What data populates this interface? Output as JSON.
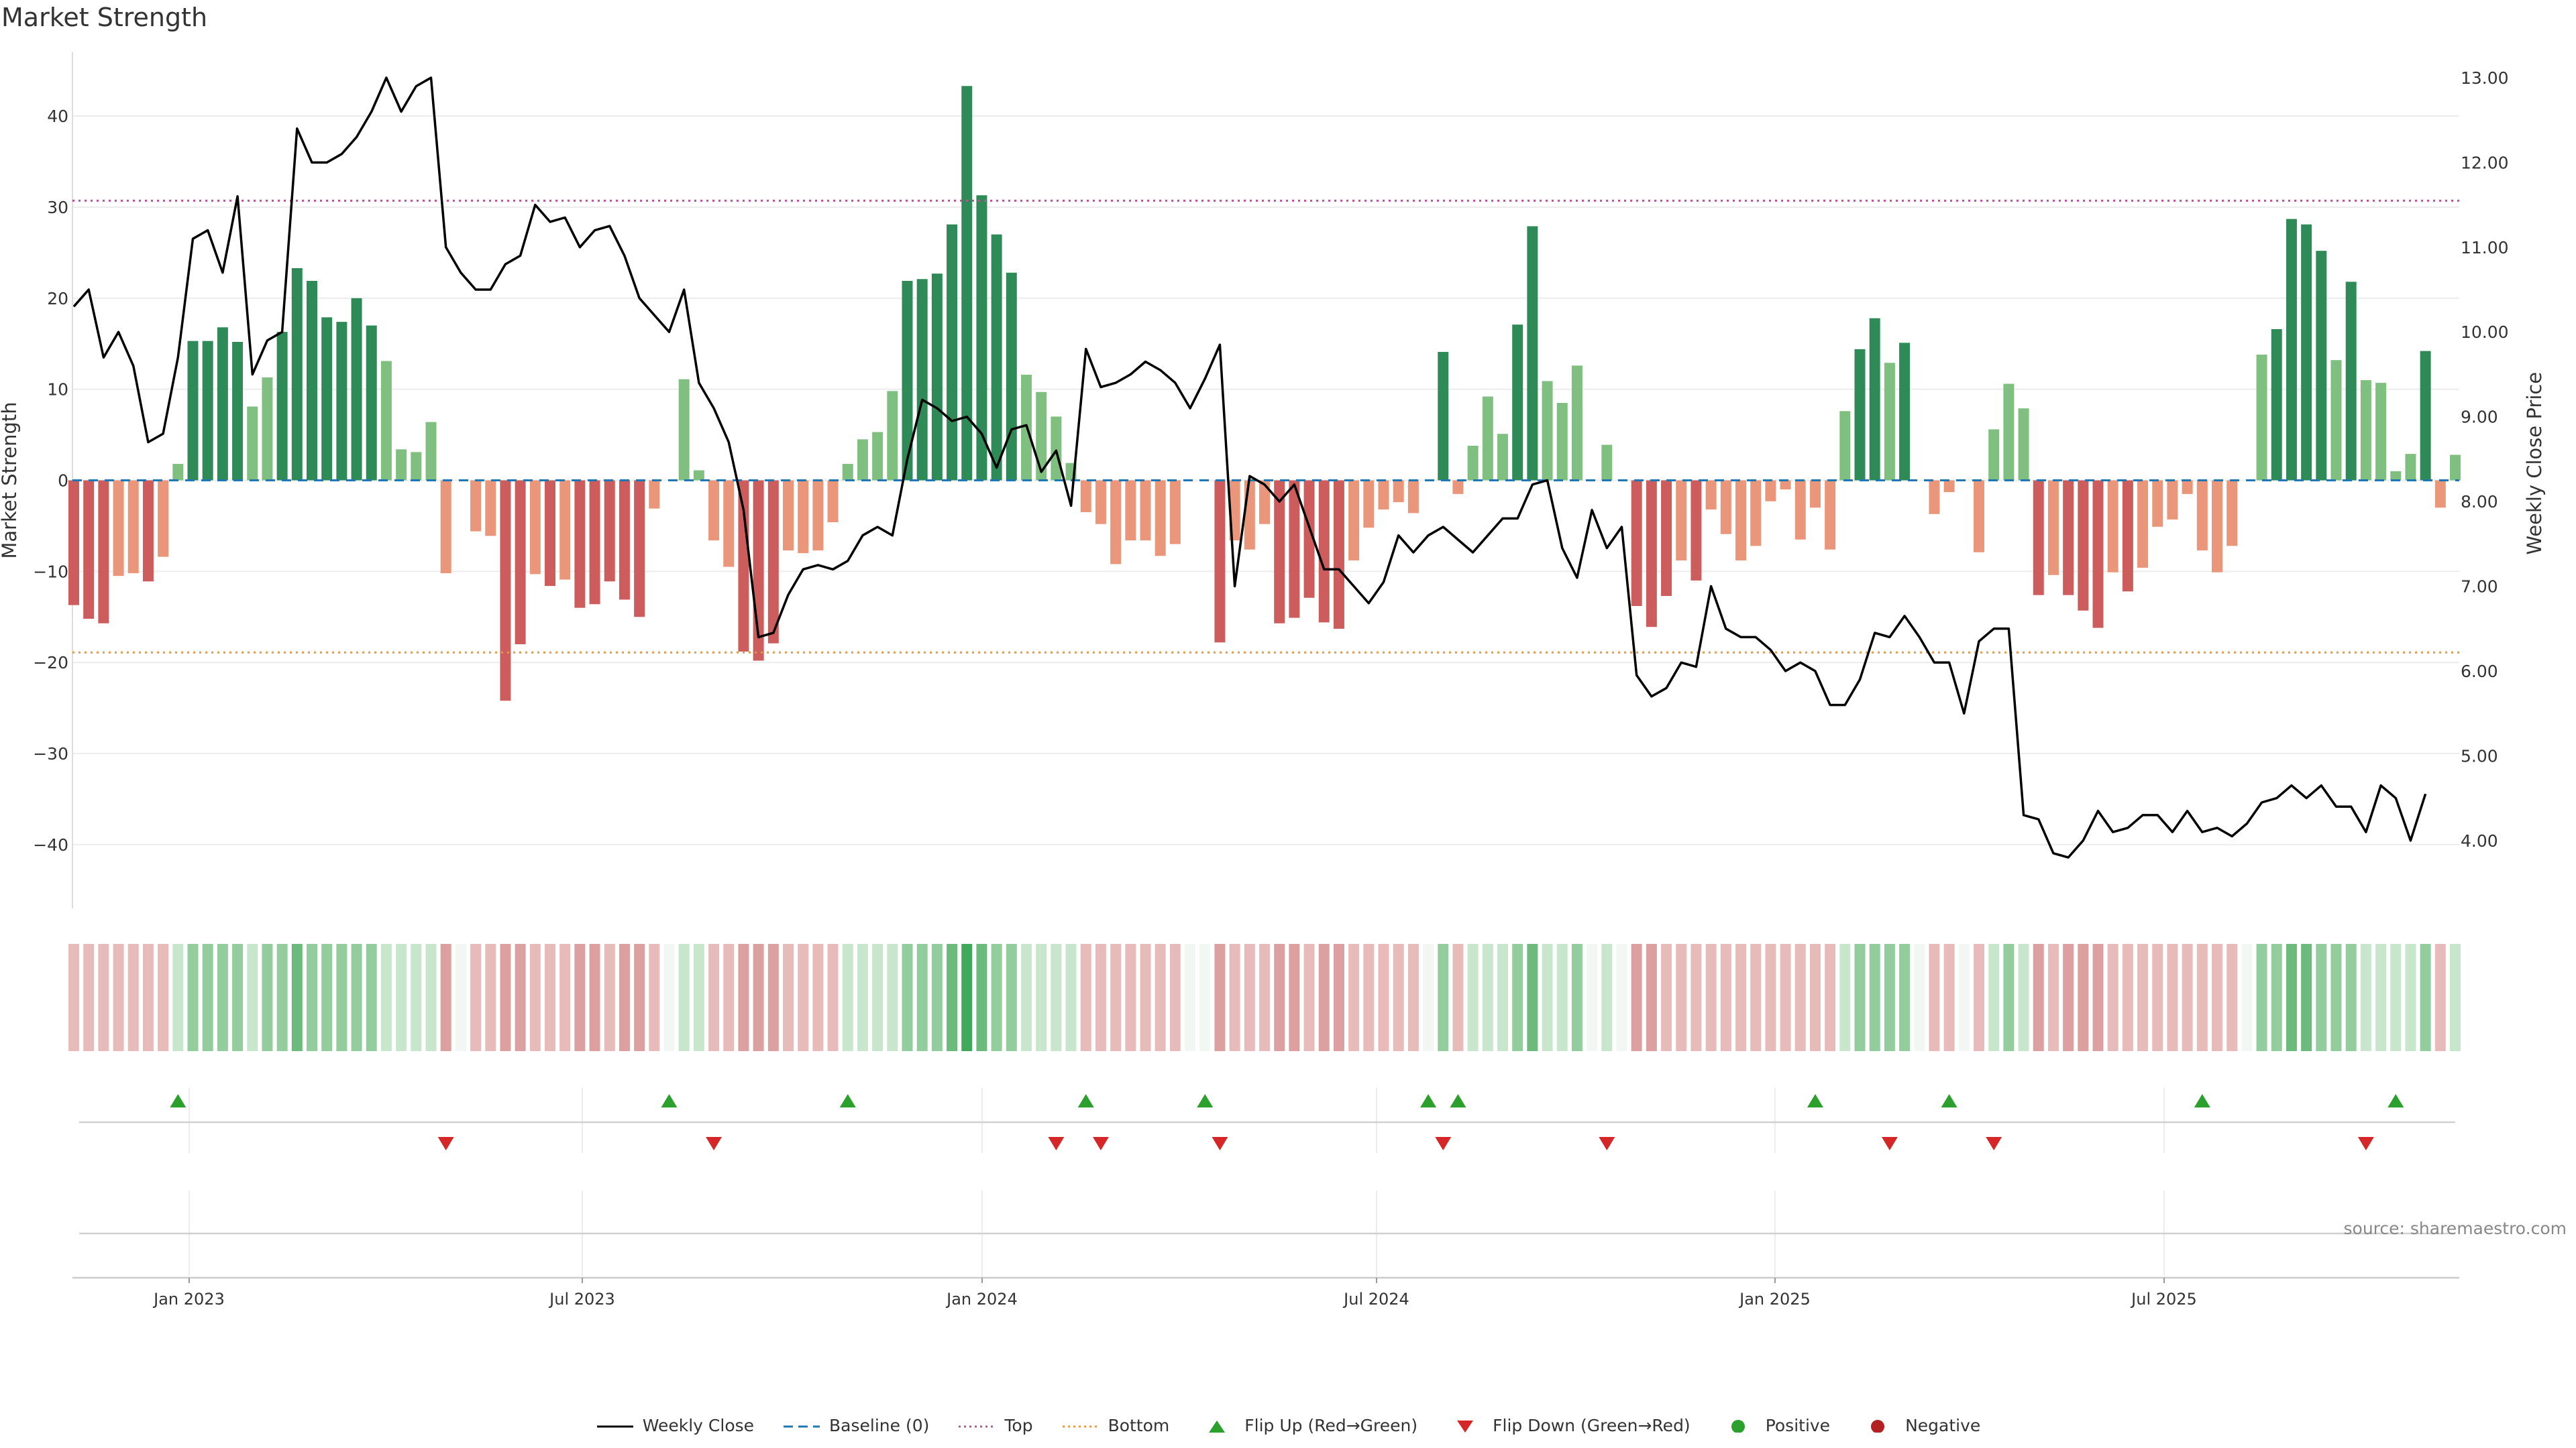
{
  "title": "Market Strength",
  "source_text": "source: sharemaestro.com",
  "colors": {
    "pos_strong": "#2e8b57",
    "pos_light": "#7fbf7f",
    "neg_strong": "#cd5c5c",
    "neg_light": "#e9967a",
    "price_line": "#000000",
    "baseline": "#1f77b4",
    "top": "#c0509c",
    "bottom": "#e39a4a",
    "flip_up": "#2ca02c",
    "flip_down": "#d62728",
    "pos_dot": "#2ca02c",
    "neg_dot": "#b22222"
  },
  "legend": [
    {
      "label": "Weekly Close",
      "symbol": "line-solid",
      "color": "#000000"
    },
    {
      "label": "Baseline (0)",
      "symbol": "line-dashed",
      "color": "#1f77b4"
    },
    {
      "label": "Top",
      "symbol": "line-dotted",
      "color": "#c0509c"
    },
    {
      "label": "Bottom",
      "symbol": "line-dotted",
      "color": "#e39a4a"
    },
    {
      "label": "Flip Up (Red→Green)",
      "symbol": "triangle-up",
      "color": "#2ca02c"
    },
    {
      "label": "Flip Down (Green→Red)",
      "symbol": "triangle-down",
      "color": "#d62728"
    },
    {
      "label": "Positive",
      "symbol": "dot",
      "color": "#2ca02c"
    },
    {
      "label": "Negative",
      "symbol": "dot",
      "color": "#b22222"
    }
  ],
  "chart_data": {
    "type": "bar",
    "title": "Market Strength",
    "ylabel": "Market Strength",
    "y2label": "Weekly Close Price",
    "ylim": [
      -47,
      47
    ],
    "y2lim": [
      3.2,
      13.3
    ],
    "yticks": [
      "40",
      "30",
      "20",
      "10",
      "0",
      "−10",
      "−20",
      "−30",
      "−40"
    ],
    "y2ticks": [
      "13.00",
      "12.00",
      "11.00",
      "10.00",
      "9.00",
      "8.00",
      "7.00",
      "6.00",
      "5.00",
      "4.00"
    ],
    "x_ticks": [
      "Jan 2023",
      "Jul 2023",
      "Jan 2024",
      "Jul 2024",
      "Jan 2025",
      "Jul 2025"
    ],
    "reference_lines": {
      "baseline": 0,
      "top": 30.7,
      "bottom": -18.9
    },
    "grid": true,
    "legend_position": "bottom",
    "series": [
      {
        "name": "Market Strength",
        "values": [
          -13.7,
          -15.2,
          -15.7,
          -10.5,
          -10.2,
          -11.1,
          -8.4,
          1.8,
          15.3,
          15.3,
          16.8,
          15.2,
          8.1,
          11.3,
          16.3,
          23.3,
          21.9,
          17.9,
          17.4,
          20.0,
          17.0,
          13.1,
          3.4,
          3.1,
          6.4,
          -10.2,
          0,
          -5.6,
          -6.1,
          -24.2,
          -18.0,
          -10.3,
          -11.6,
          -10.9,
          -14.0,
          -13.6,
          -11.1,
          -13.1,
          -15.0,
          -3.1,
          0,
          11.1,
          1.1,
          -6.6,
          -9.5,
          -18.8,
          -19.8,
          -17.9,
          -7.7,
          -8.0,
          -7.7,
          -4.6,
          1.8,
          4.5,
          5.3,
          9.8,
          21.9,
          22.1,
          22.7,
          28.1,
          43.3,
          31.3,
          27.0,
          22.8,
          11.6,
          9.7,
          7.0,
          1.9,
          -3.5,
          -4.8,
          -9.2,
          -6.6,
          -6.6,
          -8.3,
          -7.0,
          0,
          0,
          -17.8,
          -6.6,
          -7.6,
          -4.8,
          -15.7,
          -15.1,
          -12.9,
          -15.6,
          -16.3,
          -8.8,
          -5.2,
          -3.2,
          -2.4,
          -3.6,
          0,
          14.1,
          -1.5,
          3.8,
          9.2,
          5.1,
          17.1,
          27.9,
          10.9,
          8.5,
          12.6,
          0,
          3.9,
          0,
          -13.8,
          -16.1,
          -12.7,
          -8.8,
          -11.0,
          -3.2,
          -5.9,
          -8.8,
          -7.2,
          -2.3,
          -1.0,
          -6.5,
          -3.0,
          -7.6,
          7.6,
          14.4,
          17.8,
          12.9,
          15.1,
          0,
          -3.7,
          -1.3,
          0,
          -7.9,
          5.6,
          10.6,
          7.9,
          -12.6,
          -10.4,
          -12.6,
          -14.3,
          -16.2,
          -10.1,
          -12.2,
          -9.6,
          -5.1,
          -4.3,
          -1.5,
          -7.7,
          -10.1,
          -7.2,
          0,
          13.8,
          16.6,
          28.7,
          28.1,
          25.2,
          13.2,
          21.8,
          11.0,
          10.7,
          1.0,
          2.9,
          14.2,
          -3.0,
          2.8
        ]
      },
      {
        "name": "Weekly Close",
        "values": [
          10.3,
          10.5,
          9.7,
          10.0,
          9.6,
          8.7,
          8.8,
          9.7,
          11.1,
          11.2,
          10.7,
          11.6,
          9.5,
          9.9,
          10.0,
          12.4,
          12.0,
          12.0,
          12.1,
          12.3,
          12.6,
          13.0,
          12.6,
          12.9,
          13.0,
          11.0,
          10.7,
          10.5,
          10.5,
          10.8,
          10.9,
          11.5,
          11.3,
          11.35,
          11.0,
          11.2,
          11.25,
          10.9,
          10.4,
          10.2,
          10.0,
          10.5,
          9.4,
          9.1,
          8.7,
          7.9,
          6.4,
          6.45,
          6.9,
          7.2,
          7.25,
          7.2,
          7.3,
          7.6,
          7.7,
          7.6,
          8.5,
          9.2,
          9.1,
          8.95,
          9.0,
          8.8,
          8.4,
          8.85,
          8.9,
          8.35,
          8.6,
          7.95,
          9.8,
          9.35,
          9.4,
          9.5,
          9.65,
          9.55,
          9.4,
          9.1,
          9.45,
          9.85,
          7.0,
          8.3,
          8.2,
          8.0,
          8.2,
          7.7,
          7.2,
          7.2,
          7.0,
          6.8,
          7.05,
          7.6,
          7.4,
          7.6,
          7.7,
          7.55,
          7.4,
          7.6,
          7.8,
          7.8,
          8.2,
          8.25,
          7.45,
          7.1,
          7.9,
          7.45,
          7.7,
          5.95,
          5.7,
          5.8,
          6.1,
          6.05,
          7.0,
          6.5,
          6.4,
          6.4,
          6.25,
          6.0,
          6.1,
          6.0,
          5.6,
          5.6,
          5.9,
          6.45,
          6.4,
          6.65,
          6.4,
          6.1,
          6.1,
          5.5,
          6.35,
          6.5,
          6.5,
          4.3,
          4.25,
          3.85,
          3.8,
          4.0,
          4.35,
          4.1,
          4.15,
          4.3,
          4.3,
          4.1,
          4.35,
          4.1,
          4.15,
          4.05,
          4.2,
          4.45,
          4.5,
          4.65,
          4.5,
          4.65,
          4.4,
          4.4,
          4.1,
          4.65,
          4.5,
          4.0,
          4.55
        ]
      }
    ],
    "strength_strip": [
      "-1",
      "-1",
      "-1",
      "-1",
      "-1",
      "-1",
      "-1",
      "1",
      "2",
      "2",
      "2",
      "2",
      "1",
      "2",
      "2",
      "3",
      "2",
      "2",
      "2",
      "2",
      "2",
      "1",
      "1",
      "1",
      "1",
      "-2",
      "0",
      "-1",
      "-1",
      "-2",
      "-2",
      "-1",
      "-1",
      "-1",
      "-2",
      "-2",
      "-1",
      "-2",
      "-2",
      "-1",
      "0",
      "1",
      "1",
      "-1",
      "-1",
      "-2",
      "-2",
      "-2",
      "-1",
      "-1",
      "-1",
      "-1",
      "1",
      "1",
      "1",
      "1",
      "2",
      "2",
      "2",
      "3",
      "4",
      "3",
      "2",
      "2",
      "1",
      "1",
      "1",
      "1",
      "-1",
      "-1",
      "-1",
      "-1",
      "-1",
      "-1",
      "-1",
      "0",
      "0",
      "-2",
      "-1",
      "-1",
      "-1",
      "-2",
      "-2",
      "-1",
      "-2",
      "-2",
      "-1",
      "-1",
      "-1",
      "-1",
      "-1",
      "0",
      "2",
      "-1",
      "1",
      "1",
      "1",
      "2",
      "3",
      "1",
      "1",
      "2",
      "0",
      "1",
      "0",
      "-2",
      "-2",
      "-1",
      "-1",
      "-1",
      "-1",
      "-1",
      "-1",
      "-1",
      "-1",
      "-1",
      "-1",
      "-1",
      "-1",
      "1",
      "2",
      "2",
      "2",
      "2",
      "0",
      "-1",
      "-1",
      "0",
      "-1",
      "1",
      "2",
      "1",
      "-2",
      "-1",
      "-2",
      "-2",
      "-2",
      "-1",
      "-1",
      "-1",
      "-1",
      "-1",
      "-1",
      "-1",
      "-1",
      "-1",
      "0",
      "2",
      "2",
      "3",
      "3",
      "2",
      "2",
      "2",
      "1",
      "1",
      "1",
      "1",
      "2",
      "-1",
      "1"
    ],
    "flip_up_weeks": [
      7,
      40,
      52,
      68,
      76,
      91,
      93,
      117,
      126,
      143,
      156
    ],
    "flip_down_weeks": [
      25,
      43,
      66,
      69,
      77,
      92,
      103,
      122,
      129,
      154
    ]
  }
}
